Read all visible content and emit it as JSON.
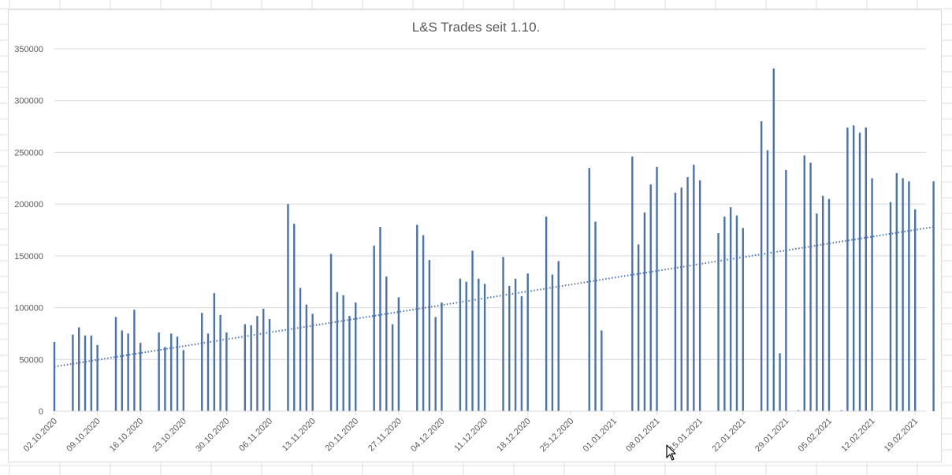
{
  "chart_data": {
    "type": "bar",
    "title": "L&S Trades seit 1.10.",
    "xlabel": "",
    "ylabel": "",
    "ylim": [
      0,
      350000
    ],
    "y_ticks": [
      0,
      50000,
      100000,
      150000,
      200000,
      250000,
      300000,
      350000
    ],
    "y_tick_labels": [
      "0",
      "50000",
      "100000",
      "150000",
      "200000",
      "250000",
      "300000",
      "350000"
    ],
    "x_start_date": "02.10.2020",
    "x_tick_labels": [
      "02.10.2020",
      "09.10.2020",
      "16.10.2020",
      "23.10.2020",
      "30.10.2020",
      "06.11.2020",
      "13.11.2020",
      "20.11.2020",
      "27.11.2020",
      "04.12.2020",
      "11.12.2020",
      "18.12.2020",
      "25.12.2020",
      "01.01.2021",
      "08.01.2021",
      "15.01.2021",
      "22.01.2021",
      "29.01.2021",
      "05.02.2021",
      "12.02.2021",
      "19.02.2021"
    ],
    "x_tick_days": [
      0,
      7,
      14,
      21,
      28,
      35,
      42,
      49,
      56,
      63,
      70,
      77,
      84,
      91,
      98,
      105,
      112,
      119,
      126,
      133,
      140
    ],
    "x_day_range": [
      0,
      141
    ],
    "grid": true,
    "legend": "none",
    "series": [
      {
        "name": "Trades",
        "color": "#4a72b0",
        "points": [
          {
            "day": 0,
            "value": 67000
          },
          {
            "day": 3,
            "value": 74000
          },
          {
            "day": 4,
            "value": 81000
          },
          {
            "day": 5,
            "value": 73000
          },
          {
            "day": 6,
            "value": 73000
          },
          {
            "day": 7,
            "value": 64000
          },
          {
            "day": 10,
            "value": 91000
          },
          {
            "day": 11,
            "value": 78000
          },
          {
            "day": 12,
            "value": 75000
          },
          {
            "day": 13,
            "value": 98000
          },
          {
            "day": 14,
            "value": 66000
          },
          {
            "day": 17,
            "value": 76000
          },
          {
            "day": 18,
            "value": 62000
          },
          {
            "day": 19,
            "value": 75000
          },
          {
            "day": 20,
            "value": 72000
          },
          {
            "day": 21,
            "value": 59000
          },
          {
            "day": 24,
            "value": 95000
          },
          {
            "day": 25,
            "value": 75000
          },
          {
            "day": 26,
            "value": 114000
          },
          {
            "day": 27,
            "value": 93000
          },
          {
            "day": 28,
            "value": 76000
          },
          {
            "day": 31,
            "value": 84000
          },
          {
            "day": 32,
            "value": 83000
          },
          {
            "day": 33,
            "value": 92000
          },
          {
            "day": 34,
            "value": 99000
          },
          {
            "day": 35,
            "value": 89000
          },
          {
            "day": 38,
            "value": 200000
          },
          {
            "day": 39,
            "value": 181000
          },
          {
            "day": 40,
            "value": 119000
          },
          {
            "day": 41,
            "value": 103000
          },
          {
            "day": 42,
            "value": 94000
          },
          {
            "day": 45,
            "value": 152000
          },
          {
            "day": 46,
            "value": 115000
          },
          {
            "day": 47,
            "value": 112000
          },
          {
            "day": 48,
            "value": 92000
          },
          {
            "day": 49,
            "value": 105000
          },
          {
            "day": 52,
            "value": 160000
          },
          {
            "day": 53,
            "value": 178000
          },
          {
            "day": 54,
            "value": 130000
          },
          {
            "day": 55,
            "value": 84000
          },
          {
            "day": 56,
            "value": 110000
          },
          {
            "day": 59,
            "value": 180000
          },
          {
            "day": 60,
            "value": 170000
          },
          {
            "day": 61,
            "value": 146000
          },
          {
            "day": 62,
            "value": 91000
          },
          {
            "day": 63,
            "value": 105000
          },
          {
            "day": 66,
            "value": 128000
          },
          {
            "day": 67,
            "value": 125000
          },
          {
            "day": 68,
            "value": 155000
          },
          {
            "day": 69,
            "value": 128000
          },
          {
            "day": 70,
            "value": 123000
          },
          {
            "day": 73,
            "value": 149000
          },
          {
            "day": 74,
            "value": 121000
          },
          {
            "day": 75,
            "value": 128000
          },
          {
            "day": 76,
            "value": 111000
          },
          {
            "day": 77,
            "value": 133000
          },
          {
            "day": 80,
            "value": 188000
          },
          {
            "day": 81,
            "value": 132000
          },
          {
            "day": 82,
            "value": 145000
          },
          {
            "day": 87,
            "value": 235000
          },
          {
            "day": 88,
            "value": 183000
          },
          {
            "day": 89,
            "value": 78000
          },
          {
            "day": 94,
            "value": 246000
          },
          {
            "day": 95,
            "value": 161000
          },
          {
            "day": 96,
            "value": 192000
          },
          {
            "day": 97,
            "value": 219000
          },
          {
            "day": 98,
            "value": 236000
          },
          {
            "day": 101,
            "value": 211000
          },
          {
            "day": 102,
            "value": 216000
          },
          {
            "day": 103,
            "value": 226000
          },
          {
            "day": 104,
            "value": 238000
          },
          {
            "day": 105,
            "value": 223000
          },
          {
            "day": 108,
            "value": 172000
          },
          {
            "day": 109,
            "value": 188000
          },
          {
            "day": 110,
            "value": 197000
          },
          {
            "day": 111,
            "value": 189000
          },
          {
            "day": 112,
            "value": 177000
          },
          {
            "day": 115,
            "value": 280000
          },
          {
            "day": 116,
            "value": 252000
          },
          {
            "day": 117,
            "value": 331000
          },
          {
            "day": 118,
            "value": 56000
          },
          {
            "day": 119,
            "value": 233000
          },
          {
            "day": 121,
            "value": 1000
          },
          {
            "day": 122,
            "value": 247000
          },
          {
            "day": 123,
            "value": 240000
          },
          {
            "day": 124,
            "value": 191000
          },
          {
            "day": 125,
            "value": 208000
          },
          {
            "day": 126,
            "value": 205000
          },
          {
            "day": 128,
            "value": 1000
          },
          {
            "day": 129,
            "value": 274000
          },
          {
            "day": 130,
            "value": 276000
          },
          {
            "day": 131,
            "value": 269000
          },
          {
            "day": 132,
            "value": 274000
          },
          {
            "day": 133,
            "value": 225000
          },
          {
            "day": 136,
            "value": 202000
          },
          {
            "day": 137,
            "value": 230000
          },
          {
            "day": 138,
            "value": 225000
          },
          {
            "day": 139,
            "value": 222000
          },
          {
            "day": 140,
            "value": 195000
          },
          {
            "day": 143,
            "value": 222000
          }
        ]
      }
    ],
    "trendline": {
      "type": "linear",
      "style": "dotted",
      "color": "#4a72b0",
      "start": {
        "day": 0,
        "value": 43000
      },
      "end": {
        "day": 143,
        "value": 178000
      }
    }
  }
}
